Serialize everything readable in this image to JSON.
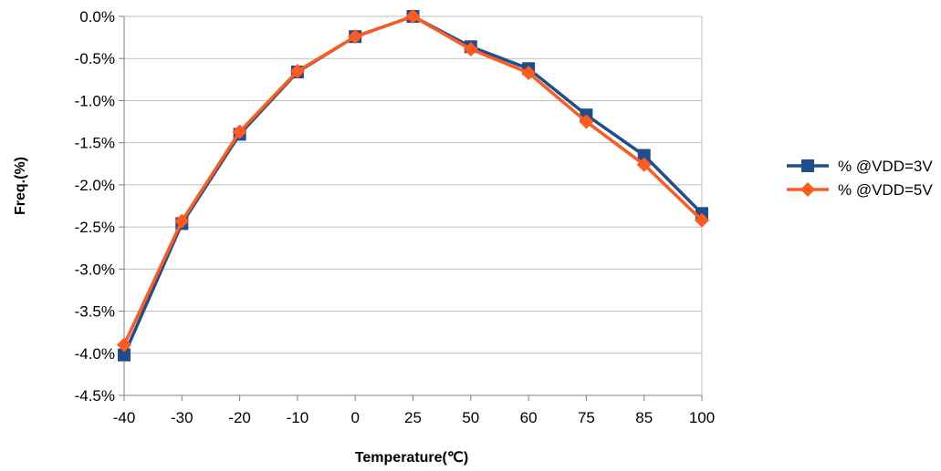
{
  "chart_data": {
    "type": "line",
    "categories": [
      "-40",
      "-30",
      "-20",
      "-10",
      "0",
      "25",
      "50",
      "60",
      "75",
      "85",
      "100"
    ],
    "series": [
      {
        "name": "% @VDD=3V",
        "color": "#1f4e8c",
        "marker": "square",
        "values": [
          -4.02,
          -2.46,
          -1.4,
          -0.66,
          -0.24,
          0.0,
          -0.36,
          -0.62,
          -1.17,
          -1.65,
          -2.34
        ]
      },
      {
        "name": "% @VDD=5V",
        "color": "#ff5a1f",
        "marker": "diamond",
        "values": [
          -3.9,
          -2.43,
          -1.37,
          -0.65,
          -0.24,
          0.0,
          -0.39,
          -0.67,
          -1.25,
          -1.76,
          -2.42
        ]
      }
    ],
    "ylim": [
      -4.5,
      0.0
    ],
    "y_step": 0.5,
    "y_tick_labels": [
      "0.0%",
      "-0.5%",
      "-1.0%",
      "-1.5%",
      "-2.0%",
      "-2.5%",
      "-3.0%",
      "-3.5%",
      "-4.0%",
      "-4.5%"
    ],
    "xlabel": "Temperature(℃)",
    "ylabel": "Freq.(%)",
    "grid": "horizontal",
    "legend_position": "right",
    "colors": {
      "grid": "#bfbfbf",
      "axis": "#808080",
      "background": "#ffffff"
    }
  }
}
